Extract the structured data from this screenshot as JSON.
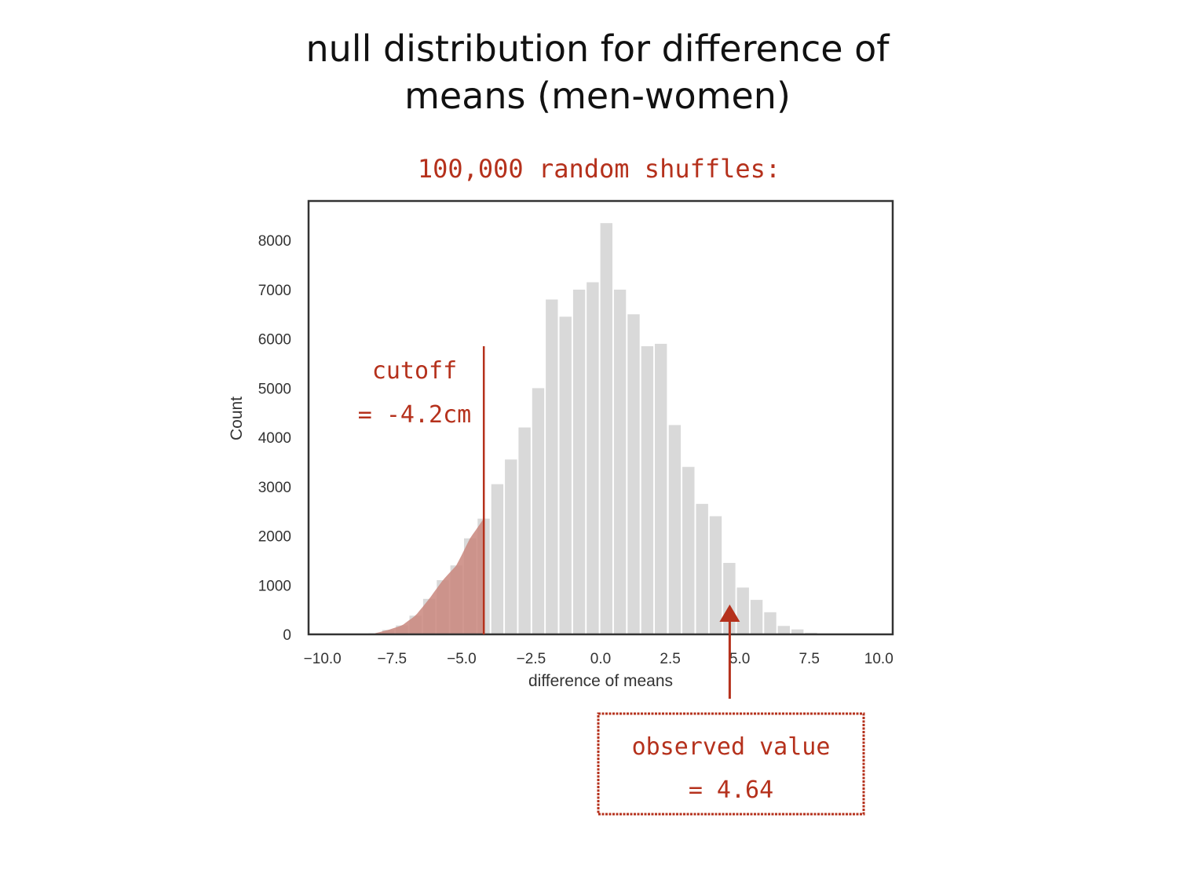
{
  "slide": {
    "title_line1": "null distribution for difference of",
    "title_line2": "means (men-women)"
  },
  "annotations": {
    "shuffles": "100,000 random shuffles:",
    "cutoff_line1": "cutoff",
    "cutoff_line2": "= -4.2cm",
    "observed_line1": "observed value",
    "observed_line2": "= 4.64"
  },
  "colors": {
    "bar": "#d9d9d9",
    "tail": "#c9867c",
    "annotation": "#b5311c",
    "frame": "#333333"
  },
  "chart_data": {
    "type": "bar",
    "title": "",
    "xlabel": "difference of means",
    "ylabel": "Count",
    "xlim": [
      -10.5,
      10.5
    ],
    "ylim": [
      0,
      8800
    ],
    "xticks": [
      "-10.0",
      "-7.5",
      "-5.0",
      "-2.5",
      "0.0",
      "2.5",
      "5.0",
      "7.5",
      "10.0"
    ],
    "xtick_values": [
      -10,
      -7.5,
      -5,
      -2.5,
      0,
      2.5,
      5,
      7.5,
      10
    ],
    "yticks": [
      "0",
      "1000",
      "2000",
      "3000",
      "4000",
      "5000",
      "6000",
      "7000",
      "8000"
    ],
    "ytick_values": [
      0,
      1000,
      2000,
      3000,
      4000,
      5000,
      6000,
      7000,
      8000
    ],
    "bin_width": 0.49,
    "bin_starts": [
      -8.37,
      -7.88,
      -7.39,
      -6.9,
      -6.41,
      -5.92,
      -5.43,
      -4.94,
      -4.45,
      -3.96,
      -3.47,
      -2.98,
      -2.49,
      -2.0,
      -1.51,
      -1.02,
      -0.53,
      -0.04,
      0.45,
      0.94,
      1.43,
      1.92,
      2.42,
      2.91,
      3.4,
      3.89,
      4.38,
      4.87,
      5.36,
      5.85,
      6.34,
      6.83,
      7.32
    ],
    "values": [
      20,
      90,
      180,
      380,
      720,
      1100,
      1400,
      1950,
      2350,
      3050,
      3550,
      4200,
      5000,
      6800,
      6450,
      7000,
      7150,
      8350,
      7000,
      6500,
      5850,
      5900,
      4250,
      3400,
      2650,
      2400,
      1450,
      950,
      700,
      450,
      170,
      100,
      30
    ],
    "cutoff": -4.2,
    "observed": 4.64,
    "tail_shading": "left of cutoff",
    "grid": false
  }
}
